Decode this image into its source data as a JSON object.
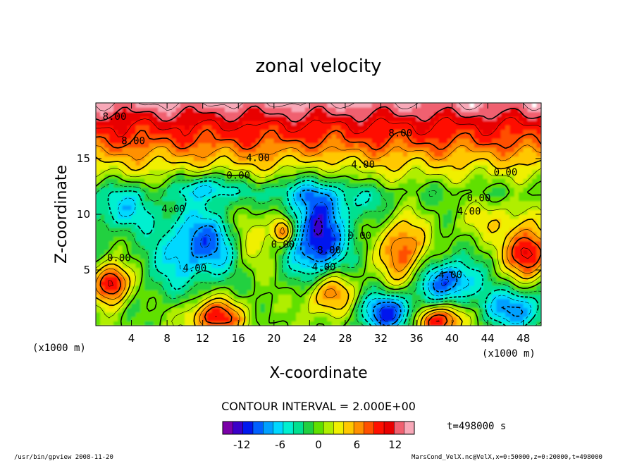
{
  "chart_data": {
    "type": "contour",
    "title": "zonal velocity",
    "xlabel": "X-coordinate",
    "ylabel": "Z-coordinate",
    "x_unit": "(x1000 m)",
    "y_unit": "(x1000 m)",
    "xlim": [
      0,
      50
    ],
    "ylim": [
      0,
      20
    ],
    "xticks": [
      4,
      8,
      12,
      16,
      20,
      24,
      28,
      32,
      36,
      40,
      44,
      48
    ],
    "yticks": [
      5,
      10,
      15
    ],
    "contour_interval_text": "CONTOUR INTERVAL = 2.000E+00",
    "colorbar": {
      "min": -15,
      "max": 15,
      "ticks": [
        -12,
        -6,
        0,
        6,
        12
      ],
      "colors": [
        "#7a00a8",
        "#3a00c8",
        "#0018ee",
        "#0060ff",
        "#00a0ff",
        "#00d8ff",
        "#00f0d0",
        "#00e090",
        "#20d040",
        "#60e000",
        "#b0ee00",
        "#f0f000",
        "#ffc800",
        "#ff9000",
        "#ff5000",
        "#ff1000",
        "#e80000",
        "#f06070",
        "#f8a8b8"
      ]
    },
    "contour_labels": [
      {
        "text": "8.00",
        "x": 2.1,
        "z": 18.8
      },
      {
        "text": "8.00",
        "x": 4.2,
        "z": 16.6
      },
      {
        "text": "8.00",
        "x": 34.2,
        "z": 17.3
      },
      {
        "text": "4.00",
        "x": 18.2,
        "z": 15.1
      },
      {
        "text": "4.00",
        "x": 30.0,
        "z": 14.5
      },
      {
        "text": "0.00",
        "x": 16.0,
        "z": 13.5
      },
      {
        "text": "0.00",
        "x": 46.0,
        "z": 13.8
      },
      {
        "text": "0.00",
        "x": 43.0,
        "z": 11.5
      },
      {
        "text": "4.00",
        "x": 41.9,
        "z": 10.3
      },
      {
        "text": "4.00",
        "x": 8.7,
        "z": 10.5
      },
      {
        "text": "0.00",
        "x": 2.6,
        "z": 6.1
      },
      {
        "text": "0.00",
        "x": 21.0,
        "z": 7.3
      },
      {
        "text": "0.00",
        "x": 29.6,
        "z": 8.1
      },
      {
        "text": "8.00",
        "x": 26.2,
        "z": 6.8
      },
      {
        "text": "4.00",
        "x": 25.6,
        "z": 5.3
      },
      {
        "text": "4.00",
        "x": 11.1,
        "z": 5.2
      },
      {
        "text": "4.00",
        "x": 39.8,
        "z": 4.6
      }
    ],
    "field_blobs": [
      {
        "x": 12.0,
        "z": 7.3,
        "rx": 4.5,
        "rz": 3.0,
        "v": -9
      },
      {
        "x": 25.0,
        "z": 7.5,
        "rx": 3.0,
        "rz": 4.5,
        "v": -12
      },
      {
        "x": 3.0,
        "z": 10.5,
        "rx": 3.5,
        "rz": 2.0,
        "v": -5
      },
      {
        "x": 12.5,
        "z": 12.5,
        "rx": 3.0,
        "rz": 1.2,
        "v": -6
      },
      {
        "x": 22.0,
        "z": 12.0,
        "rx": 6.0,
        "rz": 1.4,
        "v": -3
      },
      {
        "x": 39.5,
        "z": 4.0,
        "rx": 3.2,
        "rz": 1.8,
        "v": -10
      },
      {
        "x": 33.0,
        "z": 1.2,
        "rx": 3.5,
        "rz": 1.8,
        "v": -11
      },
      {
        "x": 47.0,
        "z": 1.5,
        "rx": 4.0,
        "rz": 1.8,
        "v": -8
      },
      {
        "x": 34.5,
        "z": 6.8,
        "rx": 2.6,
        "rz": 3.2,
        "v": 9
      },
      {
        "x": 26.0,
        "z": 3.0,
        "rx": 3.0,
        "rz": 2.3,
        "v": 10
      },
      {
        "x": 1.8,
        "z": 3.8,
        "rx": 2.0,
        "rz": 1.8,
        "v": 12
      },
      {
        "x": 13.5,
        "z": 0.8,
        "rx": 3.2,
        "rz": 1.6,
        "v": 10
      },
      {
        "x": 38.5,
        "z": 0.5,
        "rx": 3.0,
        "rz": 1.4,
        "v": 11
      },
      {
        "x": 48.5,
        "z": 6.5,
        "rx": 2.5,
        "rz": 2.2,
        "v": 12
      },
      {
        "x": 45.0,
        "z": 9.5,
        "rx": 5.0,
        "rz": 2.0,
        "v": 4
      },
      {
        "x": 17.5,
        "z": 8.0,
        "rx": 2.8,
        "rz": 3.0,
        "v": 5
      },
      {
        "x": 21.0,
        "z": 8.5,
        "rx": 1.2,
        "rz": 1.2,
        "v": 9
      },
      {
        "x": 8.0,
        "z": 4.0,
        "rx": 3.0,
        "rz": 2.5,
        "v": -2
      },
      {
        "x": 30.0,
        "z": 11.0,
        "rx": 4.0,
        "rz": 1.5,
        "v": -2
      }
    ],
    "background_profile": [
      {
        "z": 0,
        "v": 0
      },
      {
        "z": 12,
        "v": -1
      },
      {
        "z": 13.5,
        "v": 2
      },
      {
        "z": 15,
        "v": 5
      },
      {
        "z": 16.5,
        "v": 8
      },
      {
        "z": 18,
        "v": 10
      },
      {
        "z": 19,
        "v": 12
      },
      {
        "z": 20,
        "v": 14
      }
    ]
  },
  "time_label": "t=498000 s",
  "footer_left": "/usr/bin/gpview   2008-11-20",
  "footer_right": "MarsCond_VelX.nc@VelX,x=0:50000,z=0:20000,t=498000"
}
